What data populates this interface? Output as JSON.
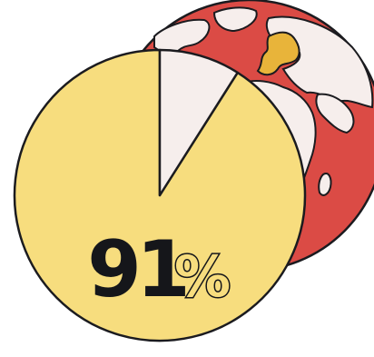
{
  "chart_data": {
    "type": "pie",
    "categories": [
      "",
      ""
    ],
    "values": [
      91,
      9
    ],
    "label": "91%",
    "label_number": "91",
    "label_percent": "%",
    "title": "",
    "legend": "none"
  },
  "colors": {
    "highlight_slice": "#f7dd7e",
    "remainder_slice": "#f6eeec",
    "globe_ocean": "#db4b45",
    "globe_land": "#f6eeec",
    "europe": "#e8b43a",
    "outline": "#1b1b1f",
    "label_text": "#15161a",
    "percent_fill": "#f7dd7e"
  },
  "decoration": {
    "globe_icon": "globe-icon"
  }
}
